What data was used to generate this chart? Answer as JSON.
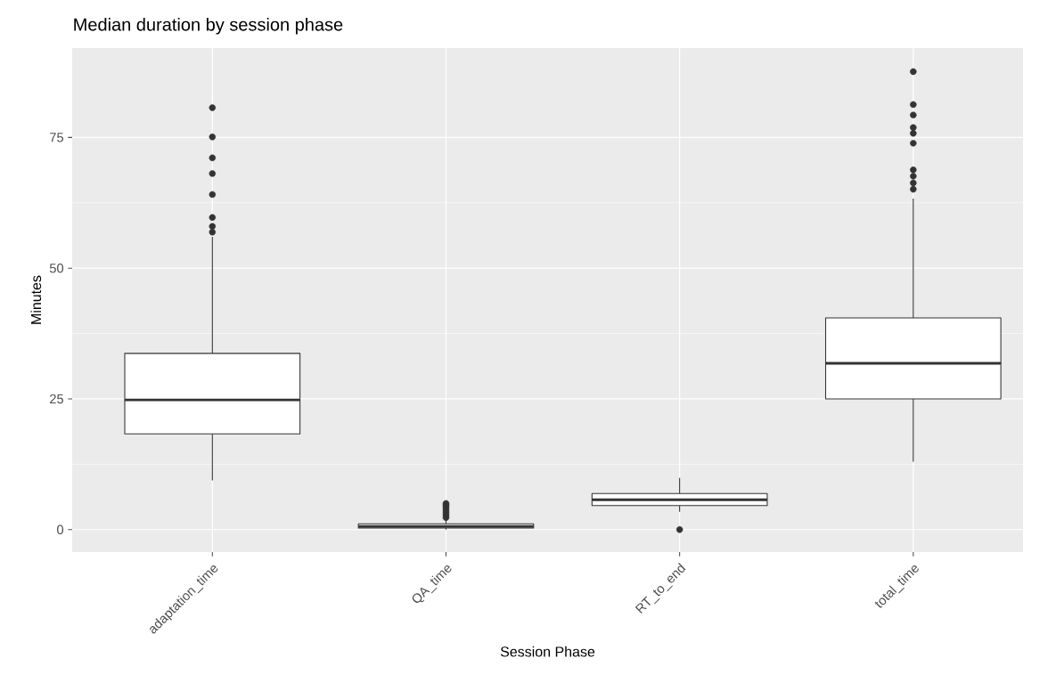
{
  "chart_data": {
    "type": "box",
    "title": "Median duration by session phase",
    "xlabel": "Session Phase",
    "ylabel": "Minutes",
    "categories": [
      "adaptation_time",
      "QA_time",
      "RT_to_end",
      "total_time"
    ],
    "series": [
      {
        "color": "#333333",
        "boxes": [
          {
            "low": 9.4,
            "q1": 18.3,
            "median": 24.8,
            "q3": 33.7,
            "high": 56.0,
            "outliers": [
              80.7,
              75.1,
              71.1,
              68.1,
              64.1,
              59.7,
              58.0,
              56.9
            ]
          },
          {
            "low": 0,
            "q1": 0.3,
            "median": 0.6,
            "q3": 1.1,
            "high": 2.2,
            "outliers": [
              2.3,
              2.8,
              3.3,
              3.8,
              4.3,
              4.7,
              5.0
            ]
          },
          {
            "low": 3.4,
            "q1": 4.6,
            "median": 5.7,
            "q3": 6.9,
            "high": 9.9,
            "outliers": [
              0
            ]
          },
          {
            "low": 13.0,
            "q1": 25.0,
            "median": 31.8,
            "q3": 40.5,
            "high": 63.3,
            "outliers": [
              87.6,
              81.3,
              79.3,
              76.9,
              75.8,
              73.9,
              68.8,
              67.6,
              66.3,
              65.1
            ]
          }
        ]
      }
    ],
    "ylim": [
      -4.3,
      92.1
    ],
    "yticks": [
      0,
      25,
      50,
      75
    ],
    "grid": true
  }
}
